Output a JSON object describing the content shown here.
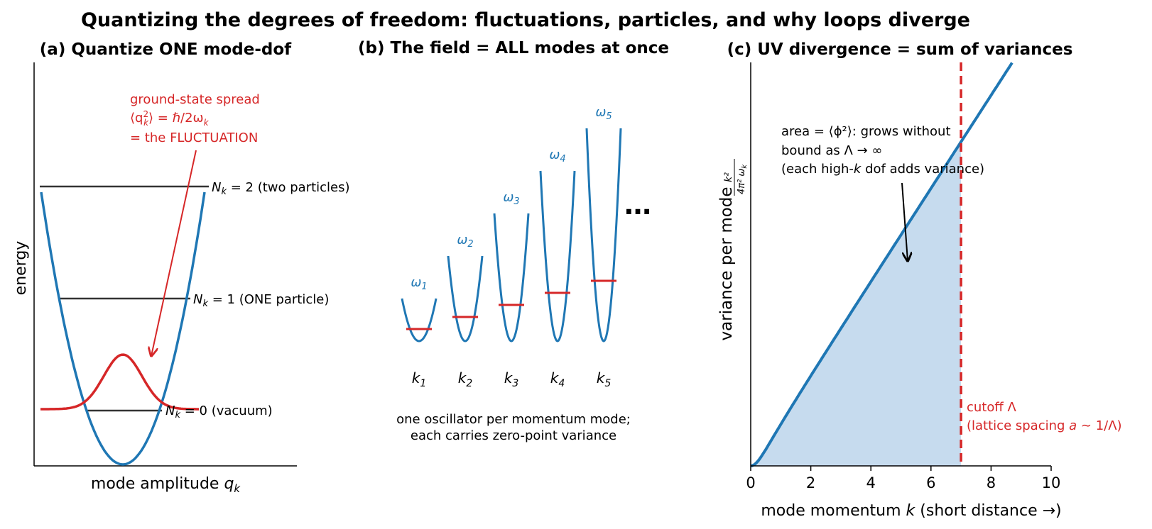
{
  "figure": {
    "title": "Quantizing the degrees of freedom: fluctuations, particles, and why loops diverge"
  },
  "panel_a": {
    "title": "(a)  Quantize ONE mode-dof",
    "ylabel": "energy",
    "xlabel_text": "mode amplitude ",
    "xlabel_var": "q",
    "xlabel_sub": "k",
    "levels": [
      {
        "N": 0,
        "rest": " = 0 (vacuum)"
      },
      {
        "N": 1,
        "rest": " = 1  (ONE particle)"
      },
      {
        "N": 2,
        "rest": " = 2 (two particles)"
      }
    ],
    "level_var": "N",
    "level_sub": "k",
    "annotation": {
      "line1": "ground-state spread",
      "line2_a": "⟨q",
      "line2_sup": "2",
      "line2_sub": "k",
      "line2_b": "⟩ = ℏ/2ω",
      "line2_sub2": "k",
      "line3": "= the FLUCTUATION"
    }
  },
  "panel_b": {
    "title": "(b)  The field = ALL modes at once",
    "modes": [
      {
        "k": "k",
        "k_sub": "1",
        "w": "ω",
        "w_sub": "1",
        "energy": 1
      },
      {
        "k": "k",
        "k_sub": "2",
        "w": "ω",
        "w_sub": "2",
        "energy": 2
      },
      {
        "k": "k",
        "k_sub": "3",
        "w": "ω",
        "w_sub": "3",
        "energy": 3
      },
      {
        "k": "k",
        "k_sub": "4",
        "w": "ω",
        "w_sub": "4",
        "energy": 4
      },
      {
        "k": "k",
        "k_sub": "5",
        "w": "ω",
        "w_sub": "5",
        "energy": 5
      }
    ],
    "ellipsis": "…",
    "caption_line1": "one oscillator per momentum mode;",
    "caption_line2": "each carries zero-point variance"
  },
  "panel_c": {
    "title": "(c)  UV divergence = sum of variances",
    "ylabel": "variance per mode",
    "ylabel_formula_num": "k²",
    "ylabel_formula_den": "4π² ω",
    "ylabel_formula_den_sub": "k",
    "xlabel_a": "mode momentum ",
    "xlabel_var": "k",
    "xlabel_b": "  (short distance →)",
    "annotation_line1": "area = ⟨ϕ²⟩: grows without",
    "annotation_line2": "bound as Λ → ∞",
    "annotation_line3_a": "(each high-",
    "annotation_line3_var": "k",
    "annotation_line3_b": " dof adds variance)",
    "cutoff_line1": "cutoff Λ",
    "cutoff_line2_a": "(lattice spacing ",
    "cutoff_line2_var": "a",
    "cutoff_line2_b": " ∼ 1/Λ)"
  },
  "chart_data": {
    "type": "area",
    "x_range": [
      0,
      10
    ],
    "x_ticks": [
      "0",
      "2",
      "4",
      "6",
      "8",
      "10"
    ],
    "cutoff": 7,
    "mass": 0.5,
    "curve": "k^2 / (4*pi^2*sqrt(k^2+m^2))",
    "shaded_from": 0,
    "shaded_to": 7,
    "colors": {
      "curve": "#1f77b4",
      "fill": "#c6dbee",
      "cutoff": "#d62728"
    }
  }
}
